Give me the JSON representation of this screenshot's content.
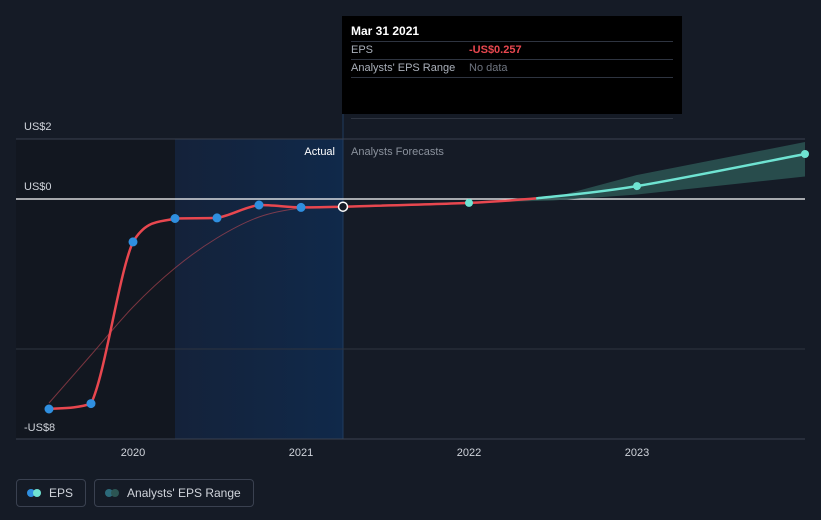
{
  "tooltip": {
    "date": "Mar 31 2021",
    "eps_label": "EPS",
    "eps_value": "-US$0.257",
    "range_label": "Analysts' EPS Range",
    "range_value": "No data"
  },
  "legend": {
    "eps_label": "EPS",
    "range_label": "Analysts' EPS Range"
  },
  "colors": {
    "actual": "#e8474f",
    "forecast": "#6fe3d2",
    "marker": "#2f8fe0",
    "band": "#2c5553",
    "background": "#151b26"
  },
  "chart_data": {
    "type": "line",
    "title": "",
    "xlabel": "",
    "ylabel": "",
    "ylim": [
      -8,
      2
    ],
    "y_ticks": [
      {
        "value": 2,
        "label": "US$2"
      },
      {
        "value": 0,
        "label": "US$0"
      },
      {
        "value": -8,
        "label": "-US$8"
      }
    ],
    "x_ticks": [
      {
        "value": 2020.0,
        "label": "2020"
      },
      {
        "value": 2021.0,
        "label": "2021"
      },
      {
        "value": 2022.0,
        "label": "2022"
      },
      {
        "value": 2023.0,
        "label": "2023"
      }
    ],
    "section_labels": {
      "actual": "Actual",
      "forecast": "Analysts Forecasts"
    },
    "series": [
      {
        "name": "EPS",
        "points": [
          {
            "x": 2019.5,
            "y": -7.0
          },
          {
            "x": 2019.75,
            "y": -6.82
          },
          {
            "x": 2020.0,
            "y": -1.43
          },
          {
            "x": 2020.25,
            "y": -0.65
          },
          {
            "x": 2020.5,
            "y": -0.63
          },
          {
            "x": 2020.75,
            "y": -0.2
          },
          {
            "x": 2021.0,
            "y": -0.28
          },
          {
            "x": 2021.25,
            "y": -0.257
          }
        ]
      },
      {
        "name": "Forecast",
        "points": [
          {
            "x": 2021.25,
            "y": -0.257
          },
          {
            "x": 2022.0,
            "y": -0.13
          },
          {
            "x": 2023.0,
            "y": 0.43
          },
          {
            "x": 2024.0,
            "y": 1.5
          }
        ]
      }
    ],
    "trend_line": [
      {
        "x": 2019.5,
        "y": -6.8
      },
      {
        "x": 2019.75,
        "y": -5.2
      },
      {
        "x": 2020.0,
        "y": -3.6
      },
      {
        "x": 2020.25,
        "y": -2.3
      },
      {
        "x": 2020.5,
        "y": -1.3
      },
      {
        "x": 2020.75,
        "y": -0.6
      },
      {
        "x": 2021.0,
        "y": -0.3
      },
      {
        "x": 2021.25,
        "y": -0.257
      }
    ],
    "forecast_range": [
      {
        "x": 2022.0,
        "low": -0.13,
        "high": -0.13
      },
      {
        "x": 2022.5,
        "low": -0.05,
        "high": 0.05
      },
      {
        "x": 2023.0,
        "low": 0.15,
        "high": 0.8
      },
      {
        "x": 2024.0,
        "low": 0.75,
        "high": 1.9
      }
    ],
    "legend": [
      "EPS",
      "Analysts' EPS Range"
    ],
    "legend_position": "bottom-left"
  }
}
